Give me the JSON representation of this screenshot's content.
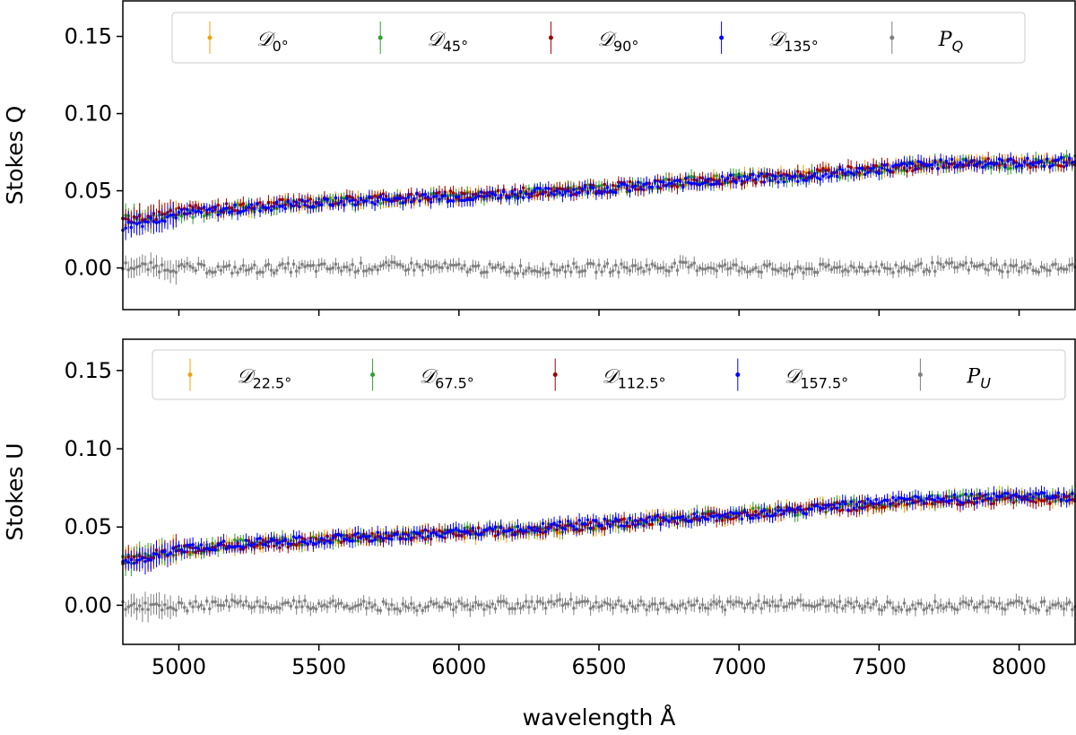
{
  "chart_data": [
    {
      "type": "scatter",
      "ylabel": "Stokes Q",
      "xlim": [
        4800,
        8200
      ],
      "ylim": [
        -0.027,
        0.173
      ],
      "yticks": [
        "0.00",
        "0.05",
        "0.10",
        "0.15"
      ],
      "ytick_values": [
        0,
        0.05,
        0.1,
        0.15
      ],
      "xticks": [
        5000,
        5500,
        6000,
        6500,
        7000,
        7500,
        8000
      ],
      "xtick_labels_shown": false,
      "legend": "top",
      "yerr": 0.004,
      "x": [
        4800,
        5000,
        5200,
        5400,
        5600,
        5800,
        6000,
        6200,
        6400,
        6600,
        6800,
        7000,
        7200,
        7400,
        7600,
        7800,
        8000,
        8200
      ],
      "series": [
        {
          "name": "𝒟",
          "sub": "0°",
          "color": "#f0a30a",
          "values": [
            0.03,
            0.036,
            0.039,
            0.042,
            0.044,
            0.045,
            0.047,
            0.048,
            0.05,
            0.053,
            0.055,
            0.058,
            0.06,
            0.063,
            0.066,
            0.069,
            0.068,
            0.069
          ]
        },
        {
          "name": "𝒟",
          "sub": "45°",
          "color": "#2ca02c",
          "values": [
            0.031,
            0.035,
            0.038,
            0.041,
            0.043,
            0.045,
            0.046,
            0.048,
            0.051,
            0.052,
            0.056,
            0.058,
            0.059,
            0.062,
            0.066,
            0.068,
            0.067,
            0.07
          ]
        },
        {
          "name": "𝒟",
          "sub": "90°",
          "color": "#a00000",
          "values": [
            0.029,
            0.037,
            0.039,
            0.042,
            0.044,
            0.046,
            0.047,
            0.049,
            0.05,
            0.053,
            0.055,
            0.057,
            0.06,
            0.063,
            0.065,
            0.068,
            0.068,
            0.068
          ]
        },
        {
          "name": "𝒟",
          "sub": "135°",
          "color": "#0000ff",
          "values": [
            0.027,
            0.035,
            0.038,
            0.041,
            0.043,
            0.045,
            0.046,
            0.048,
            0.05,
            0.052,
            0.055,
            0.058,
            0.058,
            0.062,
            0.066,
            0.068,
            0.068,
            0.069
          ]
        },
        {
          "name": "P",
          "sub": "Q",
          "color": "#808080",
          "values": [
            0.001,
            0.0,
            -0.001,
            0.0,
            0.0,
            0.001,
            0.0,
            -0.001,
            0.0,
            0.0,
            0.001,
            0.0,
            -0.001,
            0.0,
            0.0,
            0.001,
            0.0,
            0.0
          ]
        }
      ]
    },
    {
      "type": "scatter",
      "ylabel": "Stokes U",
      "xlabel": "wavelength Å",
      "xlim": [
        4800,
        8200
      ],
      "ylim": [
        -0.025,
        0.17
      ],
      "yticks": [
        "0.00",
        "0.05",
        "0.10",
        "0.15"
      ],
      "ytick_values": [
        0,
        0.05,
        0.1,
        0.15
      ],
      "xticks": [
        5000,
        5500,
        6000,
        6500,
        7000,
        7500,
        8000
      ],
      "xtick_labels": [
        "5000",
        "5500",
        "6000",
        "6500",
        "7000",
        "7500",
        "8000"
      ],
      "legend": "top",
      "yerr": 0.004,
      "x": [
        4800,
        5000,
        5200,
        5400,
        5600,
        5800,
        6000,
        6200,
        6400,
        6600,
        6800,
        7000,
        7200,
        7400,
        7600,
        7800,
        8000,
        8200
      ],
      "series": [
        {
          "name": "𝒟",
          "sub": "22.5°",
          "color": "#f0a30a",
          "values": [
            0.028,
            0.035,
            0.038,
            0.041,
            0.043,
            0.045,
            0.046,
            0.047,
            0.049,
            0.053,
            0.056,
            0.058,
            0.061,
            0.063,
            0.066,
            0.068,
            0.07,
            0.068
          ]
        },
        {
          "name": "𝒟",
          "sub": "67.5°",
          "color": "#2ca02c",
          "values": [
            0.029,
            0.034,
            0.039,
            0.041,
            0.042,
            0.045,
            0.047,
            0.048,
            0.05,
            0.052,
            0.056,
            0.059,
            0.06,
            0.064,
            0.067,
            0.068,
            0.069,
            0.069
          ]
        },
        {
          "name": "𝒟",
          "sub": "112.5°",
          "color": "#a00000",
          "values": [
            0.027,
            0.036,
            0.038,
            0.04,
            0.043,
            0.044,
            0.046,
            0.048,
            0.05,
            0.053,
            0.055,
            0.058,
            0.061,
            0.063,
            0.066,
            0.067,
            0.068,
            0.067
          ]
        },
        {
          "name": "𝒟",
          "sub": "157.5°",
          "color": "#0000ff",
          "values": [
            0.028,
            0.035,
            0.039,
            0.041,
            0.043,
            0.045,
            0.047,
            0.048,
            0.051,
            0.053,
            0.056,
            0.058,
            0.06,
            0.064,
            0.067,
            0.068,
            0.07,
            0.069
          ]
        },
        {
          "name": "P",
          "sub": "U",
          "color": "#808080",
          "values": [
            0.0,
            -0.001,
            0.001,
            0.0,
            0.0,
            -0.001,
            0.0,
            0.0,
            0.001,
            0.0,
            0.0,
            0.0,
            0.001,
            0.0,
            -0.001,
            0.0,
            0.0,
            -0.001
          ]
        }
      ]
    }
  ]
}
